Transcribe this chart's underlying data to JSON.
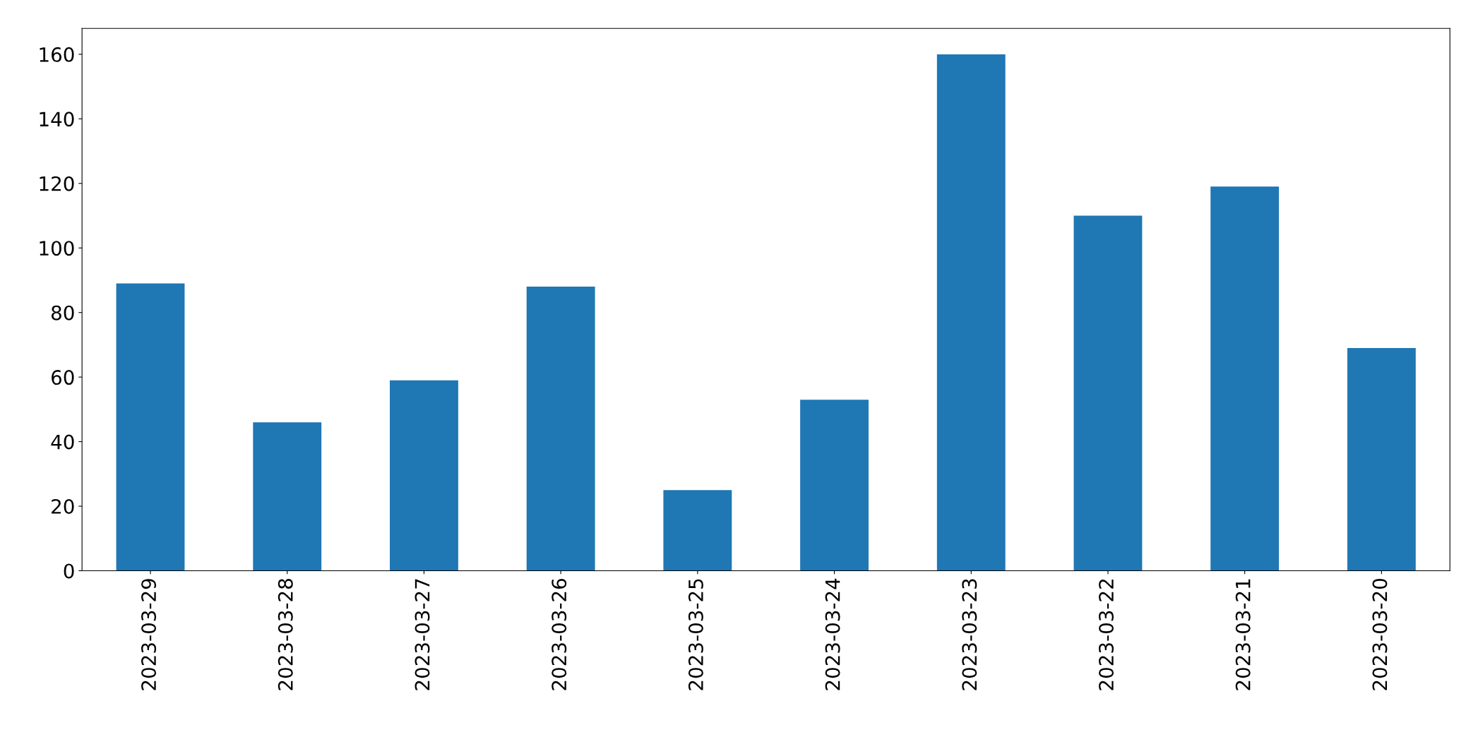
{
  "chart_data": {
    "type": "bar",
    "categories": [
      "2023-03-29",
      "2023-03-28",
      "2023-03-27",
      "2023-03-26",
      "2023-03-25",
      "2023-03-24",
      "2023-03-23",
      "2023-03-22",
      "2023-03-21",
      "2023-03-20"
    ],
    "values": [
      89,
      46,
      59,
      88,
      25,
      53,
      160,
      110,
      119,
      69
    ],
    "color": "#1f77b4",
    "ylim": [
      0,
      168
    ],
    "yticks": [
      0,
      20,
      40,
      60,
      80,
      100,
      120,
      140,
      160
    ],
    "grid": false,
    "legend": false
  }
}
